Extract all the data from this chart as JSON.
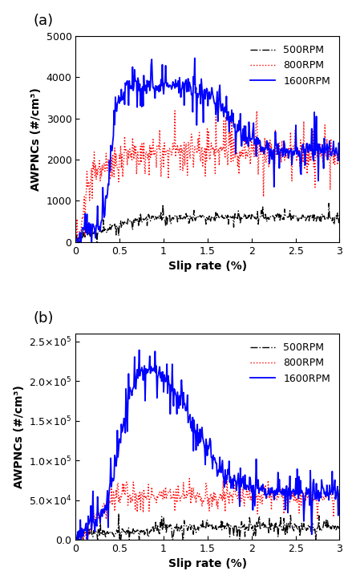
{
  "panel_labels": [
    "(a)",
    "(b)"
  ],
  "legend_labels": [
    "500RPM",
    "800RPM",
    "1600RPM"
  ],
  "colors": [
    "#000000",
    "#ff0000",
    "#0000ff"
  ],
  "linestyles": [
    "-.",
    ":",
    "-"
  ],
  "linewidths": [
    1.0,
    1.0,
    1.3
  ],
  "xlabel": "Slip rate (%)",
  "ylabel": "AWPNCs (#/cm³)",
  "xlim": [
    0.0,
    3.0
  ],
  "ylim_a": [
    0,
    5000
  ],
  "ylim_b": [
    0,
    260000
  ],
  "yticks_a": [
    0,
    1000,
    2000,
    3000,
    4000,
    5000
  ],
  "yticks_b": [
    0,
    50000,
    100000,
    150000,
    200000,
    250000
  ],
  "ytick_labels_b": [
    "0.0",
    "5.0×10⁴",
    "1.0×10⁵",
    "1.5×10⁵",
    "2.0×10⁵",
    "2.5×10⁵"
  ],
  "xticks": [
    0.0,
    0.5,
    1.0,
    1.5,
    2.0,
    2.5,
    3.0
  ],
  "legend_loc": "upper right",
  "bg_color": "#ffffff",
  "panel_label_fontsize": 13,
  "axis_label_fontsize": 10,
  "tick_fontsize": 9,
  "legend_fontsize": 9
}
